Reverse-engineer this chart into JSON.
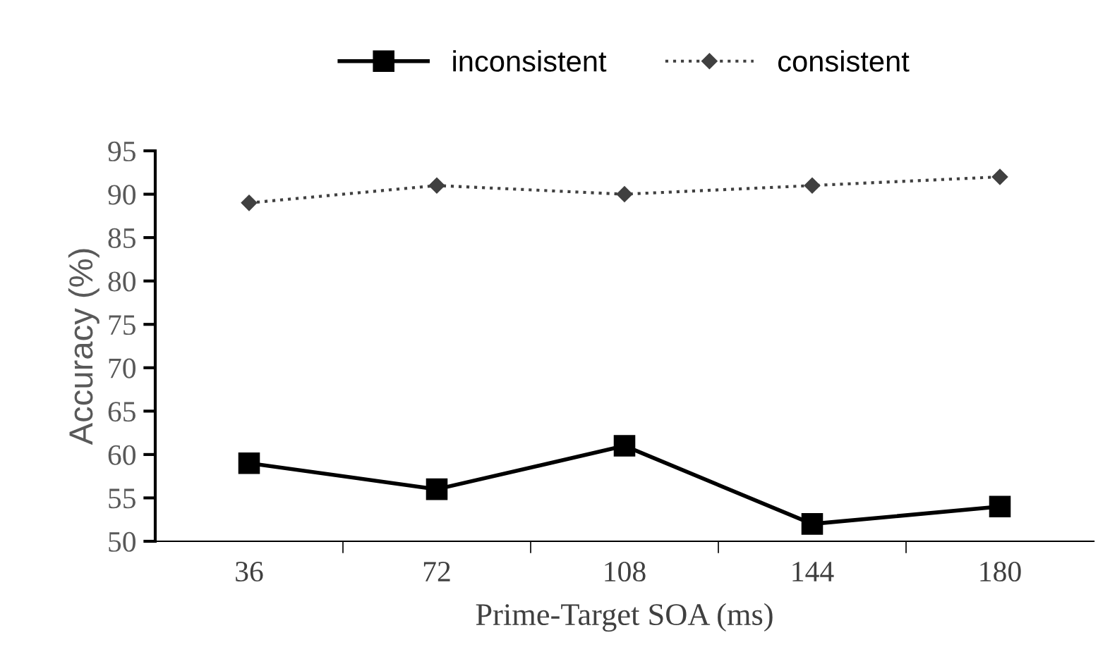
{
  "chart_data": {
    "type": "line",
    "xlabel": "Prime-Target SOA (ms)",
    "ylabel": "Accuracy (%)",
    "categories": [
      "36",
      "72",
      "108",
      "144",
      "180"
    ],
    "series": [
      {
        "name": "inconsistent",
        "color": "#000000",
        "values": [
          59,
          56,
          61,
          52,
          54
        ],
        "marker": "square",
        "line_style": "solid"
      },
      {
        "name": "consistent",
        "color": "#404040",
        "values": [
          89,
          91,
          90,
          91,
          92
        ],
        "marker": "diamond",
        "line_style": "dotted"
      }
    ],
    "ylim": [
      50,
      95
    ],
    "yticks": [
      50,
      55,
      60,
      65,
      70,
      75,
      80,
      85,
      90,
      95
    ],
    "grid": false,
    "legend": "top"
  }
}
